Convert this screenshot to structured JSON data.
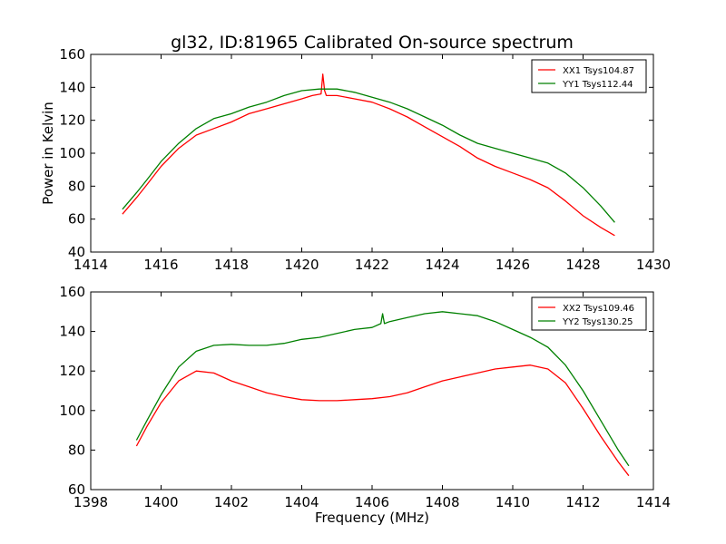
{
  "chart_data": [
    {
      "type": "line",
      "title": "gl32, ID:81965 Calibrated On-source spectrum",
      "xlabel": "",
      "ylabel": "Power in Kelvin",
      "xlim": [
        1414,
        1430
      ],
      "ylim": [
        40,
        160
      ],
      "xticks": [
        "1414",
        "1416",
        "1418",
        "1420",
        "1422",
        "1424",
        "1426",
        "1428",
        "1430"
      ],
      "yticks": [
        "40",
        "60",
        "80",
        "100",
        "120",
        "140",
        "160"
      ],
      "legend_position": "top-right",
      "grid": false,
      "series": [
        {
          "name": "XX1 Tsys104.87",
          "color": "#ff0000",
          "x": [
            1414.9,
            1415.3,
            1415.6,
            1416.0,
            1416.5,
            1417.0,
            1417.5,
            1418.0,
            1418.5,
            1419.0,
            1419.5,
            1420.0,
            1420.3,
            1420.55,
            1420.6,
            1420.65,
            1420.7,
            1421.0,
            1421.5,
            1422.0,
            1422.5,
            1423.0,
            1423.5,
            1424.0,
            1424.5,
            1425.0,
            1425.5,
            1426.0,
            1426.5,
            1427.0,
            1427.5,
            1428.0,
            1428.5,
            1428.9
          ],
          "y": [
            63,
            73,
            81,
            92,
            103,
            111,
            115,
            119,
            124,
            127,
            130,
            133,
            135,
            136,
            148,
            138,
            135,
            135,
            133,
            131,
            127,
            122,
            116,
            110,
            104,
            97,
            92,
            88,
            84,
            79,
            71,
            62,
            55,
            50
          ]
        },
        {
          "name": "YY1 Tsys112.44",
          "color": "#008000",
          "x": [
            1414.9,
            1415.3,
            1415.6,
            1416.0,
            1416.5,
            1417.0,
            1417.5,
            1418.0,
            1418.5,
            1419.0,
            1419.5,
            1420.0,
            1420.5,
            1421.0,
            1421.5,
            1422.0,
            1422.5,
            1423.0,
            1423.5,
            1424.0,
            1424.5,
            1425.0,
            1425.5,
            1426.0,
            1426.5,
            1427.0,
            1427.5,
            1428.0,
            1428.5,
            1428.9
          ],
          "y": [
            66,
            76,
            84,
            95,
            106,
            115,
            121,
            124,
            128,
            131,
            135,
            138,
            139,
            139,
            137,
            134,
            131,
            127,
            122,
            117,
            111,
            106,
            103,
            100,
            97,
            94,
            88,
            79,
            68,
            58
          ]
        }
      ]
    },
    {
      "type": "line",
      "title": "",
      "xlabel": "Frequency (MHz)",
      "ylabel": "",
      "xlim": [
        1398,
        1414
      ],
      "ylim": [
        60,
        160
      ],
      "xticks": [
        "1398",
        "1400",
        "1402",
        "1404",
        "1406",
        "1408",
        "1410",
        "1412",
        "1414"
      ],
      "yticks": [
        "60",
        "80",
        "100",
        "120",
        "140",
        "160"
      ],
      "legend_position": "top-right",
      "grid": false,
      "series": [
        {
          "name": "XX2 Tsys109.46",
          "color": "#ff0000",
          "x": [
            1399.3,
            1399.6,
            1400.0,
            1400.5,
            1401.0,
            1401.5,
            1402.0,
            1402.5,
            1403.0,
            1403.5,
            1404.0,
            1404.5,
            1405.0,
            1405.5,
            1406.0,
            1406.5,
            1407.0,
            1407.5,
            1408.0,
            1408.5,
            1409.0,
            1409.5,
            1410.0,
            1410.5,
            1411.0,
            1411.5,
            1412.0,
            1412.5,
            1413.0,
            1413.3
          ],
          "y": [
            82,
            92,
            104,
            115,
            120,
            119,
            115,
            112,
            109,
            107,
            105.5,
            105,
            105,
            105.5,
            106,
            107,
            109,
            112,
            115,
            117,
            119,
            121,
            122,
            123,
            121,
            114,
            101,
            87,
            74,
            67
          ]
        },
        {
          "name": "YY2 Tsys130.25",
          "color": "#008000",
          "x": [
            1399.3,
            1399.6,
            1400.0,
            1400.5,
            1401.0,
            1401.5,
            1402.0,
            1402.5,
            1403.0,
            1403.5,
            1404.0,
            1404.5,
            1405.0,
            1405.5,
            1406.0,
            1406.25,
            1406.3,
            1406.35,
            1406.5,
            1407.0,
            1407.5,
            1408.0,
            1408.5,
            1409.0,
            1409.5,
            1410.0,
            1410.5,
            1411.0,
            1411.5,
            1412.0,
            1412.5,
            1413.0,
            1413.3
          ],
          "y": [
            85,
            95,
            108,
            122,
            130,
            133,
            133.5,
            133,
            133,
            134,
            136,
            137,
            139,
            141,
            142,
            144,
            149,
            144,
            145,
            147,
            149,
            150,
            149,
            148,
            145,
            141,
            137,
            132,
            123,
            110,
            95,
            80,
            72
          ]
        }
      ]
    }
  ]
}
